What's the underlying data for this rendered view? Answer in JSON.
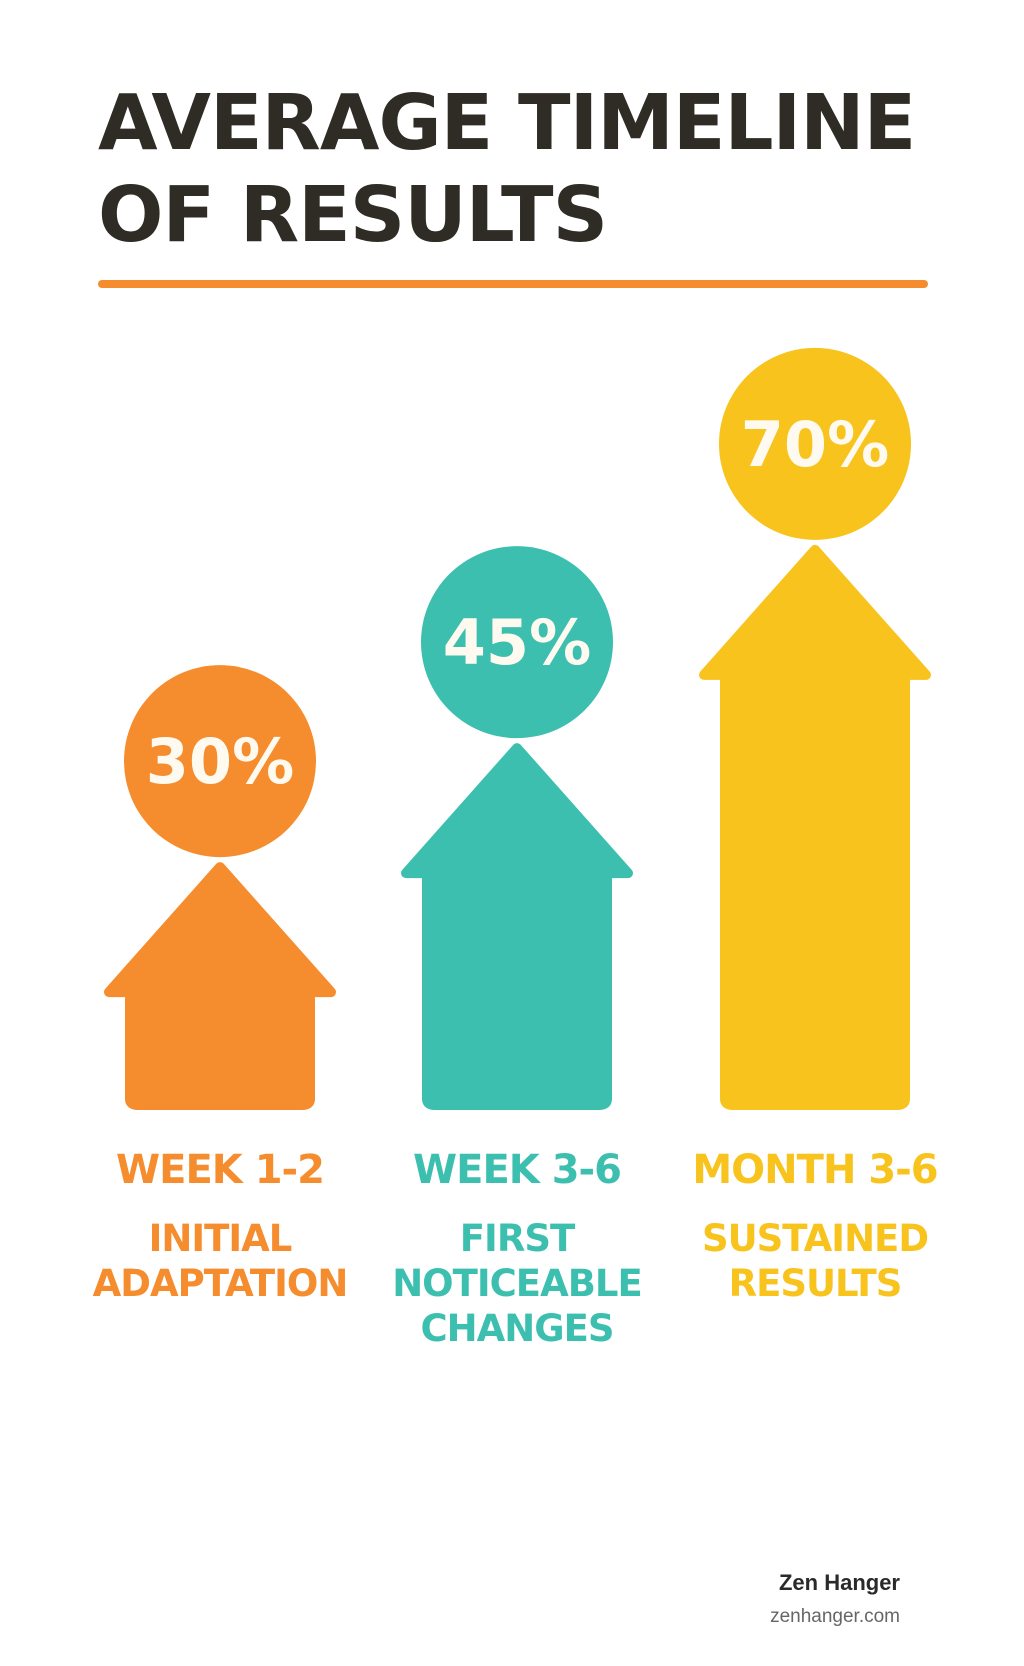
{
  "title": "AVERAGE TIMELINE OF RESULTS",
  "colors": {
    "title": "#2f2b25",
    "rule": "#f58c2d",
    "orange": "#f58c2d",
    "teal": "#3dbfb0",
    "yellow": "#f7c31c"
  },
  "chart_data": {
    "type": "bar",
    "title": "AVERAGE TIMELINE OF RESULTS",
    "categories": [
      "WEEK 1-2",
      "WEEK 3-6",
      "MONTH 3-6"
    ],
    "values": [
      30,
      45,
      70
    ],
    "value_labels": [
      "30%",
      "45%",
      "70%"
    ],
    "descriptions": [
      "INITIAL ADAPTATION",
      "FIRST NOTICEABLE CHANGES",
      "SUSTAINED RESULTS"
    ],
    "mark_shape": "up-arrow",
    "colors": [
      "#f58c2d",
      "#3dbfb0",
      "#f7c31c"
    ],
    "xlabel": "",
    "ylabel": "",
    "grid": false
  },
  "footer": {
    "brand": "Zen Hanger",
    "url": "zenhanger.com"
  }
}
